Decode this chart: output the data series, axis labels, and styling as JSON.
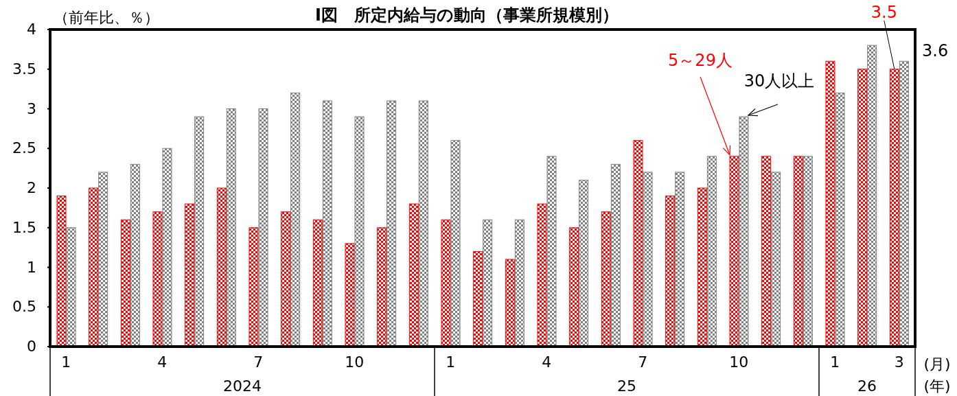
{
  "chart_data": {
    "type": "bar",
    "title": "I図　所定内給与の動向（事業所規模別）",
    "ylabel": "（前年比、％）",
    "categories": [
      "1",
      null,
      null,
      "4",
      null,
      null,
      "7",
      null,
      null,
      "10",
      null,
      null,
      "1",
      null,
      null,
      "4",
      null,
      null,
      "7",
      null,
      null,
      "10",
      null,
      null,
      "1",
      null,
      "3"
    ],
    "series": [
      {
        "name": "5～29人",
        "color": "#ff0000",
        "values": [
          1.9,
          2.0,
          1.6,
          1.7,
          1.8,
          2.0,
          1.5,
          1.7,
          1.6,
          1.3,
          1.5,
          1.8,
          1.6,
          1.2,
          1.1,
          1.8,
          1.5,
          1.7,
          2.6,
          1.9,
          2.0,
          2.4,
          2.4,
          2.4,
          3.6,
          3.5,
          3.5
        ]
      },
      {
        "name": "30人以上",
        "color": "#808080",
        "values": [
          1.5,
          2.2,
          2.3,
          2.5,
          2.9,
          3.0,
          3.0,
          3.2,
          3.1,
          2.9,
          3.1,
          3.1,
          2.6,
          1.6,
          1.6,
          2.4,
          2.1,
          2.3,
          2.2,
          2.2,
          2.4,
          2.9,
          2.2,
          2.4,
          3.2,
          3.8,
          3.6
        ]
      }
    ],
    "ylim": [
      0,
      4
    ],
    "yticks": [
      0,
      0.5,
      1,
      1.5,
      2,
      2.5,
      3,
      3.5,
      4
    ],
    "grid": false,
    "annotations": [
      {
        "text": "3.5",
        "x": "3",
        "y": 3.5
      },
      {
        "text": "3.6",
        "x": "3",
        "y": 3.6
      },
      "(月)",
      "(年)",
      "2024",
      "25",
      "26"
    ]
  }
}
